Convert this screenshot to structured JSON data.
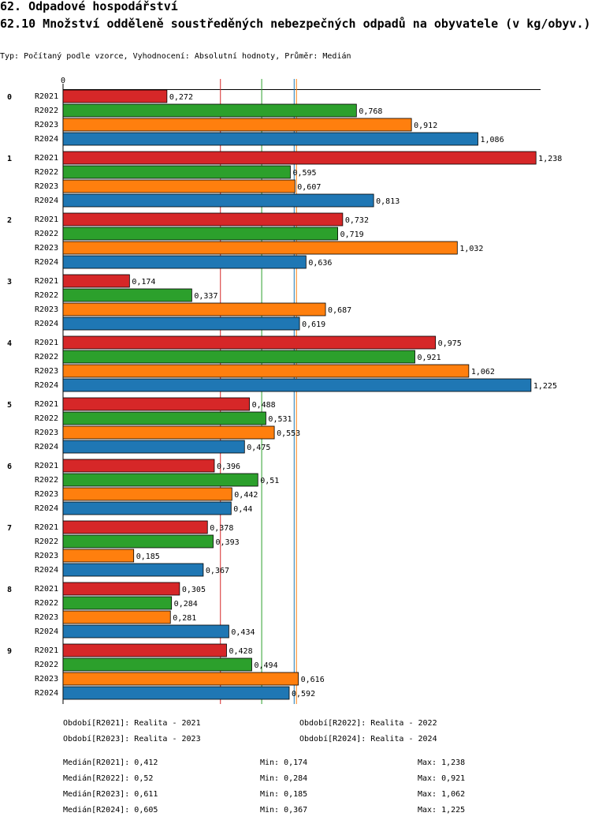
{
  "chart_data": {
    "type": "bar",
    "orientation": "horizontal",
    "section": "62. Odpadové hospodářství",
    "title": "62.10 Množství odděleně soustředěných nebezpečných odpadů na obyvatele (v kg/obyv.)",
    "subtitle": "Typ: Počítaný podle vzorce, Vyhodnocení: Absolutní hodnoty, Průměr: Medián",
    "categories": [
      "0",
      "1",
      "2",
      "3",
      "4",
      "5",
      "6",
      "7",
      "8",
      "9"
    ],
    "xlim": [
      0,
      1.25
    ],
    "xticks": [
      0
    ],
    "series": [
      {
        "name": "R2021",
        "color": "#d62728",
        "values": [
          0.272,
          1.238,
          0.732,
          0.174,
          0.975,
          0.488,
          0.396,
          0.378,
          0.305,
          0.428
        ],
        "value_labels": [
          "0,272",
          "1,238",
          "0,732",
          "0,174",
          "0,975",
          "0,488",
          "0,396",
          "0,378",
          "0,305",
          "0,428"
        ],
        "legend": "Období[R2021]: Realita - 2021",
        "median": 0.412,
        "median_label": "Medián[R2021]: 0,412",
        "min_label": "Min: 0,174",
        "max_label": "Max: 1,238"
      },
      {
        "name": "R2022",
        "color": "#2ca02c",
        "values": [
          0.768,
          0.595,
          0.719,
          0.337,
          0.921,
          0.531,
          0.51,
          0.393,
          0.284,
          0.494
        ],
        "value_labels": [
          "0,768",
          "0,595",
          "0,719",
          "0,337",
          "0,921",
          "0,531",
          "0,51",
          "0,393",
          "0,284",
          "0,494"
        ],
        "legend": "Období[R2022]: Realita - 2022",
        "median": 0.52,
        "median_label": "Medián[R2022]: 0,52",
        "min_label": "Min: 0,284",
        "max_label": "Max: 0,921"
      },
      {
        "name": "R2023",
        "color": "#ff7f0e",
        "values": [
          0.912,
          0.607,
          1.032,
          0.687,
          1.062,
          0.553,
          0.442,
          0.185,
          0.281,
          0.616
        ],
        "value_labels": [
          "0,912",
          "0,607",
          "1,032",
          "0,687",
          "1,062",
          "0,553",
          "0,442",
          "0,185",
          "0,281",
          "0,616"
        ],
        "legend": "Období[R2023]: Realita - 2023",
        "median": 0.611,
        "median_label": "Medián[R2023]: 0,611",
        "min_label": "Min: 0,185",
        "max_label": "Max: 1,062"
      },
      {
        "name": "R2024",
        "color": "#1f77b4",
        "values": [
          1.086,
          0.813,
          0.636,
          0.619,
          1.225,
          0.475,
          0.44,
          0.367,
          0.434,
          0.592
        ],
        "value_labels": [
          "1,086",
          "0,813",
          "0,636",
          "0,619",
          "1,225",
          "0,475",
          "0,44",
          "0,367",
          "0,434",
          "0,592"
        ],
        "legend": "Období[R2024]: Realita - 2024",
        "median": 0.605,
        "median_label": "Medián[R2024]: 0,605",
        "min_label": "Min: 0,367",
        "max_label": "Max: 1,225"
      }
    ]
  }
}
